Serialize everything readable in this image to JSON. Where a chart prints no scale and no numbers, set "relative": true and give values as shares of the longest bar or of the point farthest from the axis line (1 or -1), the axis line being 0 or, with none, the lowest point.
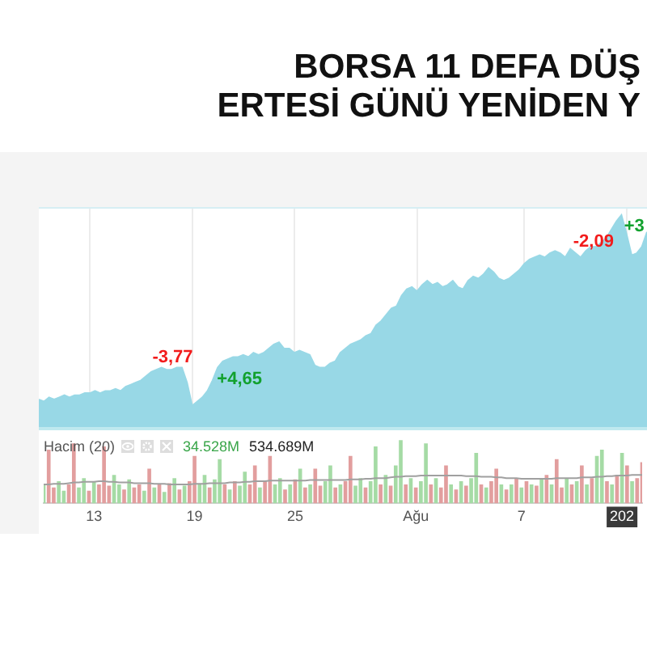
{
  "chart_data": [
    {
      "type": "area",
      "title": "BORSA 11 DEFA DÜŞ",
      "subtitle": "ERTESİ GÜNÜ YENİDEN Y",
      "relative": true,
      "tick_labels": false,
      "grid": "x",
      "color": "#98d8e6",
      "categories": [
        null,
        null,
        null,
        null,
        null,
        null,
        null,
        null,
        null,
        null,
        null,
        null,
        null,
        null,
        null,
        null,
        null,
        null,
        null,
        null,
        null,
        null,
        null,
        null,
        null,
        null,
        null,
        null,
        null,
        null,
        null,
        null,
        null,
        null,
        null,
        null,
        null,
        null,
        null,
        null,
        null,
        null,
        null,
        null,
        null,
        null,
        null,
        null,
        null,
        null,
        null,
        null,
        null,
        null,
        null,
        null,
        null,
        null,
        null,
        null,
        null,
        null,
        null,
        null,
        null,
        null,
        null,
        null,
        null,
        null,
        null,
        null,
        null,
        null,
        null,
        null,
        null,
        null,
        null,
        null,
        null,
        null,
        null,
        null,
        null,
        null,
        null,
        null,
        null,
        null,
        null,
        null,
        null,
        null,
        null,
        null,
        null,
        null,
        null,
        null,
        null,
        null,
        null,
        null,
        null,
        null,
        null,
        null,
        null,
        null,
        null,
        null,
        null,
        null,
        null,
        null,
        null,
        null,
        null,
        null
      ],
      "values": [
        0.13,
        0.12,
        0.14,
        0.13,
        0.14,
        0.15,
        0.14,
        0.15,
        0.15,
        0.16,
        0.16,
        0.17,
        0.16,
        0.17,
        0.17,
        0.18,
        0.17,
        0.19,
        0.2,
        0.21,
        0.22,
        0.24,
        0.26,
        0.27,
        0.28,
        0.27,
        0.27,
        0.28,
        0.28,
        0.21,
        0.1,
        0.12,
        0.14,
        0.17,
        0.22,
        0.28,
        0.31,
        0.32,
        0.33,
        0.33,
        0.34,
        0.33,
        0.35,
        0.34,
        0.35,
        0.37,
        0.39,
        0.4,
        0.37,
        0.37,
        0.35,
        0.36,
        0.35,
        0.34,
        0.29,
        0.28,
        0.28,
        0.3,
        0.31,
        0.35,
        0.37,
        0.39,
        0.4,
        0.41,
        0.43,
        0.44,
        0.48,
        0.5,
        0.53,
        0.56,
        0.57,
        0.62,
        0.65,
        0.66,
        0.64,
        0.67,
        0.69,
        0.67,
        0.68,
        0.66,
        0.67,
        0.69,
        0.66,
        0.65,
        0.69,
        0.71,
        0.7,
        0.72,
        0.75,
        0.73,
        0.7,
        0.69,
        0.7,
        0.72,
        0.74,
        0.77,
        0.79,
        0.8,
        0.81,
        0.8,
        0.82,
        0.83,
        0.82,
        0.8,
        0.84,
        0.82,
        0.8,
        0.83,
        0.85,
        0.85,
        0.87,
        0.89,
        0.93,
        0.97,
        1,
        0.91,
        0.81,
        0.82,
        0.85,
        0.92
      ],
      "annotations": [
        "-3,77",
        "+4,65",
        "-2,09",
        "+3"
      ]
    },
    {
      "type": "bar",
      "title": "Hacim (20)",
      "relative": true,
      "tick_labels": "x",
      "annotations": [
        "34.528M",
        "534.689M"
      ],
      "categories": [
        null,
        null,
        null,
        null,
        null,
        null,
        null,
        null,
        null,
        null,
        "13",
        null,
        null,
        null,
        null,
        null,
        null,
        null,
        null,
        null,
        null,
        null,
        null,
        null,
        null,
        null,
        null,
        null,
        null,
        null,
        "19",
        null,
        null,
        null,
        null,
        null,
        null,
        null,
        null,
        null,
        null,
        null,
        null,
        null,
        null,
        null,
        null,
        null,
        null,
        null,
        "25",
        null,
        null,
        null,
        null,
        null,
        null,
        null,
        null,
        null,
        null,
        null,
        null,
        null,
        null,
        null,
        null,
        null,
        null,
        null,
        null,
        null,
        null,
        null,
        "Ağu",
        null,
        null,
        null,
        null,
        null,
        null,
        null,
        null,
        null,
        null,
        null,
        null,
        null,
        null,
        null,
        null,
        null,
        null,
        null,
        null,
        "7",
        null,
        null,
        null,
        null,
        null,
        null,
        null,
        null,
        null,
        null,
        null,
        null,
        null,
        null,
        null,
        null,
        null,
        null,
        null,
        "202",
        null,
        null,
        null,
        null
      ],
      "series": [
        {
          "values": [
            0.3,
            0.85,
            0.25,
            0.35,
            0.2,
            0.3,
            0.95,
            0.25,
            0.4,
            0.2,
            0.35,
            0.3,
            0.9,
            0.28,
            0.45,
            0.3,
            0.22,
            0.38,
            0.25,
            0.3,
            0.2,
            0.55,
            0.25,
            0.3,
            0.18,
            0.32,
            0.4,
            0.22,
            0.28,
            0.35,
            0.75,
            0.3,
            0.45,
            0.25,
            0.38,
            0.7,
            0.3,
            0.22,
            0.35,
            0.28,
            0.5,
            0.3,
            0.6,
            0.25,
            0.35,
            0.75,
            0.3,
            0.4,
            0.22,
            0.3,
            0.38,
            0.55,
            0.25,
            0.3,
            0.55,
            0.28,
            0.35,
            0.6,
            0.25,
            0.3,
            0.35,
            0.75,
            0.28,
            0.4,
            0.25,
            0.35,
            0.9,
            0.3,
            0.45,
            0.28,
            0.6,
            1,
            0.3,
            0.4,
            0.25,
            0.35,
            0.95,
            0.3,
            0.4,
            0.25,
            0.6,
            0.3,
            0.22,
            0.35,
            0.28,
            0.4,
            0.8,
            0.3,
            0.25,
            0.35,
            0.55,
            0.3,
            0.22,
            0.3,
            0.4,
            0.25,
            0.35,
            0.3,
            0.28,
            0.38,
            0.45,
            0.3,
            0.7,
            0.25,
            0.4,
            0.3,
            0.35,
            0.6,
            0.3,
            0.4,
            0.75,
            0.85,
            0.35,
            0.3,
            0.45,
            0.8,
            0.6,
            0.35,
            0.4,
            0.65
          ],
          "colors": [
            "#a5dba5",
            "#e29e9e",
            "#e29e9e",
            "#a5dba5",
            "#a5dba5",
            "#e29e9e",
            "#e29e9e",
            "#a5dba5",
            "#a5dba5",
            "#e29e9e",
            "#a5dba5",
            "#e29e9e",
            "#e29e9e",
            "#e29e9e",
            "#a5dba5",
            "#a5dba5",
            "#e29e9e",
            "#a5dba5",
            "#e29e9e",
            "#e29e9e",
            "#a5dba5",
            "#e29e9e",
            "#a5dba5",
            "#e29e9e",
            "#a5dba5",
            "#e29e9e",
            "#a5dba5",
            "#e29e9e",
            "#a5dba5",
            "#e29e9e",
            "#e29e9e",
            "#a5dba5",
            "#a5dba5",
            "#e29e9e",
            "#a5dba5",
            "#a5dba5",
            "#e29e9e",
            "#a5dba5",
            "#e29e9e",
            "#a5dba5",
            "#a5dba5",
            "#e29e9e",
            "#e29e9e",
            "#a5dba5",
            "#e29e9e",
            "#e29e9e",
            "#a5dba5",
            "#a5dba5",
            "#e29e9e",
            "#a5dba5",
            "#e29e9e",
            "#a5dba5",
            "#e29e9e",
            "#a5dba5",
            "#e29e9e",
            "#e29e9e",
            "#a5dba5",
            "#a5dba5",
            "#e29e9e",
            "#a5dba5",
            "#e29e9e",
            "#e29e9e",
            "#a5dba5",
            "#a5dba5",
            "#e29e9e",
            "#a5dba5",
            "#a5dba5",
            "#e29e9e",
            "#a5dba5",
            "#e29e9e",
            "#a5dba5",
            "#a5dba5",
            "#e29e9e",
            "#a5dba5",
            "#e29e9e",
            "#a5dba5",
            "#a5dba5",
            "#e29e9e",
            "#a5dba5",
            "#e29e9e",
            "#e29e9e",
            "#a5dba5",
            "#e29e9e",
            "#a5dba5",
            "#e29e9e",
            "#a5dba5",
            "#a5dba5",
            "#e29e9e",
            "#a5dba5",
            "#e29e9e",
            "#e29e9e",
            "#a5dba5",
            "#e29e9e",
            "#a5dba5",
            "#e29e9e",
            "#a5dba5",
            "#e29e9e",
            "#a5dba5",
            "#e29e9e",
            "#a5dba5",
            "#e29e9e",
            "#a5dba5",
            "#e29e9e",
            "#e29e9e",
            "#a5dba5",
            "#e29e9e",
            "#a5dba5",
            "#e29e9e",
            "#a5dba5",
            "#e29e9e",
            "#a5dba5",
            "#a5dba5",
            "#e29e9e",
            "#a5dba5",
            "#e29e9e",
            "#a5dba5",
            "#e29e9e",
            "#a5dba5",
            "#e29e9e",
            "#e29e9e"
          ]
        },
        {
          "type": "line",
          "color": "#a0a0a0",
          "values": [
            0.3,
            0.3,
            0.31,
            0.31,
            0.31,
            0.32,
            0.33,
            0.33,
            0.34,
            0.34,
            0.34,
            0.35,
            0.35,
            0.34,
            0.34,
            0.33,
            0.33,
            0.33,
            0.32,
            0.32,
            0.32,
            0.32,
            0.31,
            0.31,
            0.31,
            0.3,
            0.3,
            0.3,
            0.3,
            0.3,
            0.31,
            0.31,
            0.31,
            0.32,
            0.32,
            0.32,
            0.32,
            0.33,
            0.33,
            0.33,
            0.34,
            0.34,
            0.35,
            0.35,
            0.35,
            0.36,
            0.36,
            0.36,
            0.36,
            0.36,
            0.36,
            0.36,
            0.36,
            0.37,
            0.37,
            0.37,
            0.37,
            0.37,
            0.37,
            0.37,
            0.37,
            0.38,
            0.38,
            0.38,
            0.39,
            0.39,
            0.4,
            0.4,
            0.4,
            0.41,
            0.42,
            0.42,
            0.43,
            0.43,
            0.43,
            0.44,
            0.44,
            0.44,
            0.44,
            0.44,
            0.44,
            0.44,
            0.44,
            0.44,
            0.43,
            0.43,
            0.43,
            0.42,
            0.42,
            0.42,
            0.41,
            0.41,
            0.4,
            0.4,
            0.4,
            0.39,
            0.39,
            0.39,
            0.39,
            0.39,
            0.39,
            0.39,
            0.4,
            0.4,
            0.4,
            0.4,
            0.4,
            0.41,
            0.41,
            0.41,
            0.42,
            0.42,
            0.43,
            0.43,
            0.44,
            0.44,
            0.44,
            0.45,
            0.45,
            0.45
          ]
        }
      ]
    }
  ]
}
